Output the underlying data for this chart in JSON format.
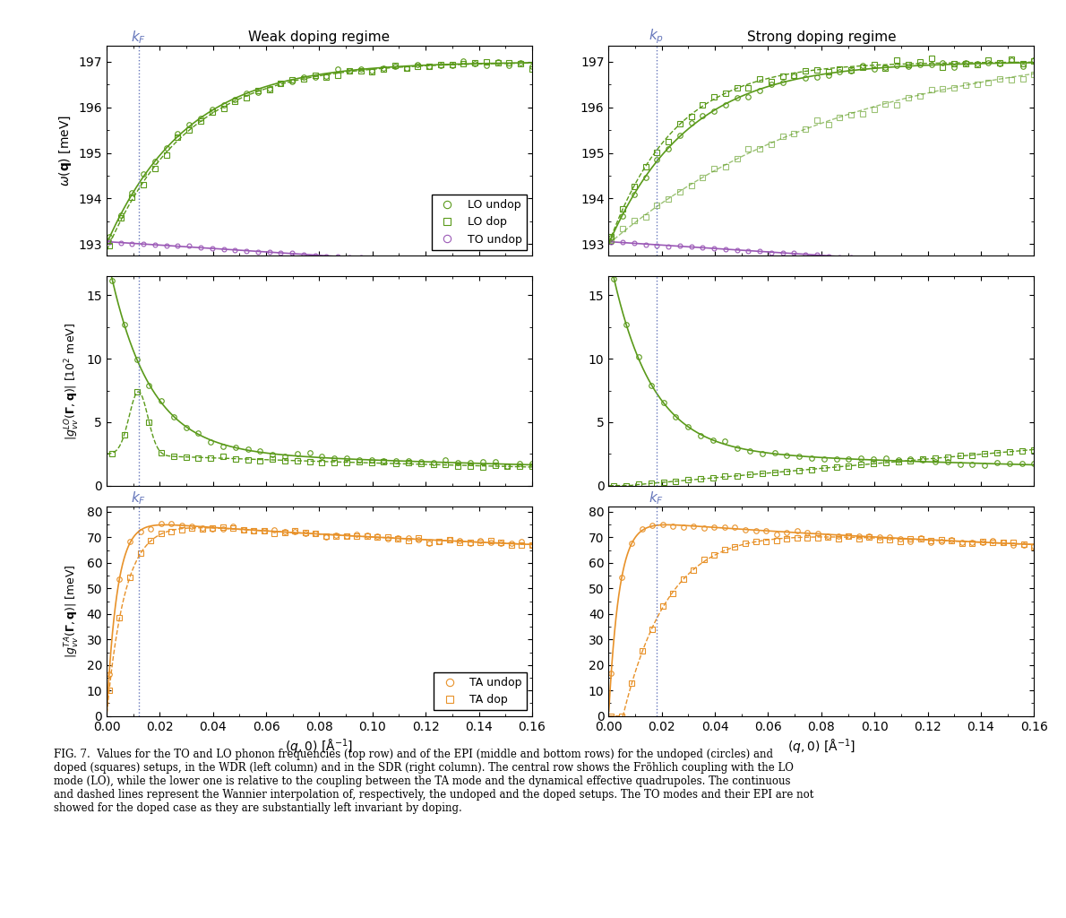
{
  "fig_width": 11.9,
  "fig_height": 10.24,
  "background_color": "#ffffff",
  "green_color": "#5a9a1a",
  "purple_color": "#9b59b6",
  "orange_color": "#e8922a",
  "kF_weak": 0.012,
  "kF_strong": 0.018,
  "xmax": 0.16,
  "top_title_left": "Weak doping regime",
  "top_title_right": "Strong doping regime",
  "caption": "FIG. 7.  Values for the TO and LO phonon frequencies (top row) and of the EPI (middle and bottom rows) for the undoped (circles) and\ndoped (squares) setups, in the WDR (left column) and in the SDR (right column). The central row shows the Fröhlich coupling with the LO\nmode (LO), while the lower one is relative to the coupling between the TA mode and the dynamical effective quadrupoles. The continuous\nand dashed lines represent the Wannier interpolation of, respectively, the undoped and the doped setups. The TO modes and their EPI are not\nshowed for the doped case as they are substantially left invariant by doping."
}
